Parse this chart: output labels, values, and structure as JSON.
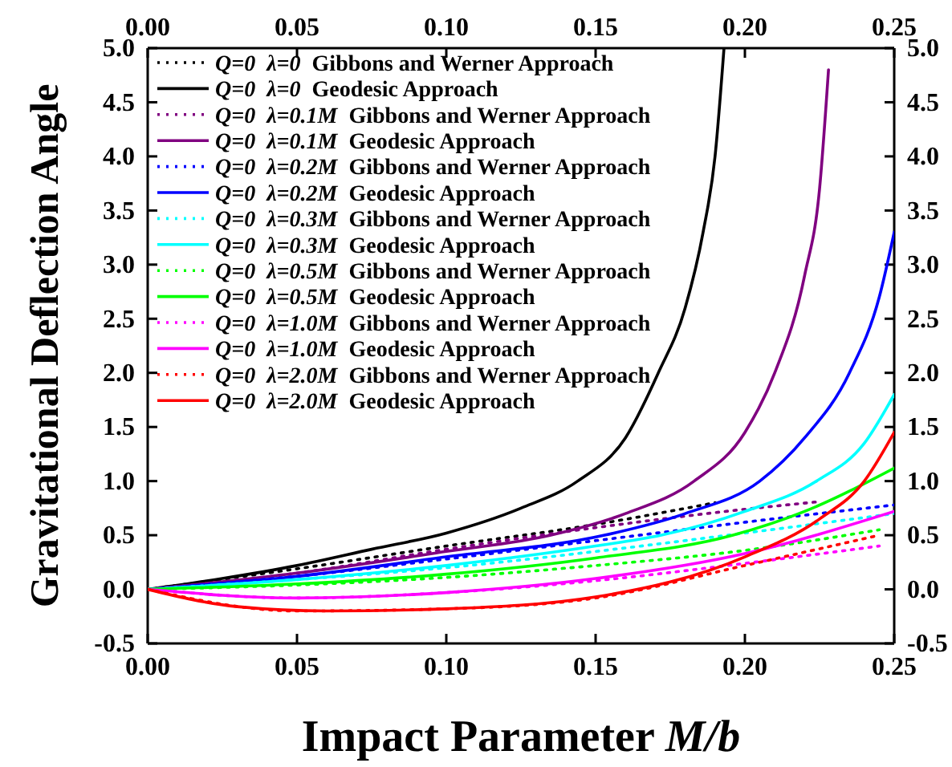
{
  "chart_data": {
    "type": "line",
    "xlabel": "Impact Parameter M/b",
    "ylabel": "Gravitational Deflection Angle",
    "xlim": [
      0,
      0.25
    ],
    "xticks": [
      {
        "value": 0,
        "label": "0.00"
      },
      {
        "value": 0.05,
        "label": "0.05"
      },
      {
        "value": 0.1,
        "label": "0.10"
      },
      {
        "value": 0.15,
        "label": "0.15"
      },
      {
        "value": 0.2,
        "label": "0.20"
      },
      {
        "value": 0.25,
        "label": "0.25"
      }
    ],
    "x2lim": [
      0,
      0.25
    ],
    "x2ticks": [
      {
        "value": 0,
        "label": "0.00"
      },
      {
        "value": 0.05,
        "label": "0.05"
      },
      {
        "value": 0.1,
        "label": "0.10"
      },
      {
        "value": 0.15,
        "label": "0.15"
      },
      {
        "value": 0.2,
        "label": "0.20"
      },
      {
        "value": 0.25,
        "label": "0.25"
      }
    ],
    "ylim": [
      -0.5,
      5
    ],
    "yticks": [
      {
        "value": -0.5,
        "label": "-0.5"
      },
      {
        "value": 0,
        "label": "0.0"
      },
      {
        "value": 0.5,
        "label": "0.5"
      },
      {
        "value": 1,
        "label": "1.0"
      },
      {
        "value": 1.5,
        "label": "1.5"
      },
      {
        "value": 2,
        "label": "2.0"
      },
      {
        "value": 2.5,
        "label": "2.5"
      },
      {
        "value": 3,
        "label": "3.0"
      },
      {
        "value": 3.5,
        "label": "3.5"
      },
      {
        "value": 4,
        "label": "4.0"
      },
      {
        "value": 4.5,
        "label": "4.5"
      },
      {
        "value": 5,
        "label": "5.0"
      }
    ],
    "y2lim": [
      -0.5,
      5
    ],
    "y2ticks": [
      {
        "value": -0.5,
        "label": "-0.5"
      },
      {
        "value": 0,
        "label": "0.0"
      },
      {
        "value": 0.5,
        "label": "0.5"
      },
      {
        "value": 1,
        "label": "1.0"
      },
      {
        "value": 1.5,
        "label": "1.5"
      },
      {
        "value": 2,
        "label": "2.0"
      },
      {
        "value": 2.5,
        "label": "2.5"
      },
      {
        "value": 3,
        "label": "3.0"
      },
      {
        "value": 3.5,
        "label": "3.5"
      },
      {
        "value": 4,
        "label": "4.0"
      },
      {
        "value": 4.5,
        "label": "4.5"
      },
      {
        "value": 5,
        "label": "5.0"
      }
    ],
    "grid": false,
    "legend": "top left",
    "marker": "none",
    "series": [
      {
        "name": "Q=0  λ=0  Gibbons and Werner Approach",
        "color": "#000000",
        "line_style": "dotted",
        "x": [
          0,
          0.05,
          0.1,
          0.15,
          0.19
        ],
        "values": [
          0,
          0.19,
          0.4,
          0.6,
          0.8
        ]
      },
      {
        "name": "Q=0  λ=0  Geodesic Approach",
        "color": "#000000",
        "line_style": "solid",
        "x": [
          0,
          0.025,
          0.05,
          0.075,
          0.1,
          0.125,
          0.144,
          0.16,
          0.171,
          0.18,
          0.186,
          0.19,
          0.193
        ],
        "values": [
          0,
          0.1,
          0.22,
          0.37,
          0.52,
          0.75,
          1.0,
          1.4,
          2.0,
          2.6,
          3.3,
          4.0,
          5.0
        ]
      },
      {
        "name": "Q=0  λ=0.1M  Gibbons and Werner Approach",
        "color": "#800080",
        "line_style": "dotted",
        "x": [
          0,
          0.05,
          0.1,
          0.15,
          0.2,
          0.225
        ],
        "values": [
          0,
          0.15,
          0.37,
          0.57,
          0.74,
          0.81
        ]
      },
      {
        "name": "Q=0  λ=0.1M  Geodesic Approach",
        "color": "#800080",
        "line_style": "solid",
        "x": [
          0,
          0.05,
          0.1,
          0.135,
          0.16,
          0.183,
          0.2,
          0.21,
          0.22,
          0.225,
          0.228
        ],
        "values": [
          0,
          0.15,
          0.35,
          0.5,
          0.7,
          1.0,
          1.45,
          2.0,
          2.9,
          3.7,
          4.8
        ]
      },
      {
        "name": "Q=0  λ=0.2M  Gibbons and Werner Approach",
        "color": "#0000ff",
        "line_style": "dotted",
        "x": [
          0,
          0.05,
          0.1,
          0.15,
          0.2,
          0.25
        ],
        "values": [
          0,
          0.12,
          0.28,
          0.45,
          0.62,
          0.78
        ]
      },
      {
        "name": "Q=0  λ=0.2M  Geodesic Approach",
        "color": "#0000ff",
        "line_style": "solid",
        "x": [
          0,
          0.05,
          0.1,
          0.153,
          0.18,
          0.205,
          0.22,
          0.235,
          0.245,
          0.25
        ],
        "values": [
          0,
          0.12,
          0.3,
          0.5,
          0.7,
          1.0,
          1.4,
          2.0,
          2.7,
          3.3
        ]
      },
      {
        "name": "Q=0  λ=0.3M  Gibbons and Werner Approach",
        "color": "#00ffff",
        "line_style": "dotted",
        "x": [
          0,
          0.05,
          0.1,
          0.15,
          0.2,
          0.25
        ],
        "values": [
          0,
          0.09,
          0.2,
          0.35,
          0.52,
          0.7
        ]
      },
      {
        "name": "Q=0  λ=0.3M  Geodesic Approach",
        "color": "#00ffff",
        "line_style": "solid",
        "x": [
          0,
          0.05,
          0.1,
          0.15,
          0.172,
          0.2,
          0.224,
          0.24,
          0.25
        ],
        "values": [
          0,
          0.09,
          0.22,
          0.4,
          0.5,
          0.72,
          1.0,
          1.35,
          1.8
        ]
      },
      {
        "name": "Q=0  λ=0.5M  Gibbons and Werner Approach",
        "color": "#00ff00",
        "line_style": "dotted",
        "x": [
          0,
          0.05,
          0.1,
          0.15,
          0.2,
          0.245
        ],
        "values": [
          0,
          0.04,
          0.11,
          0.22,
          0.36,
          0.55
        ]
      },
      {
        "name": "Q=0  λ=0.5M  Geodesic Approach",
        "color": "#00ff00",
        "line_style": "solid",
        "x": [
          0,
          0.05,
          0.1,
          0.15,
          0.196,
          0.22,
          0.25
        ],
        "values": [
          0,
          0.05,
          0.14,
          0.29,
          0.5,
          0.72,
          1.12
        ]
      },
      {
        "name": "Q=0  λ=1.0M  Gibbons and Werner Approach",
        "color": "#ff00ff",
        "line_style": "dotted",
        "x": [
          0,
          0.05,
          0.1,
          0.15,
          0.2,
          0.245
        ],
        "values": [
          0,
          -0.08,
          -0.03,
          0.08,
          0.24,
          0.4
        ]
      },
      {
        "name": "Q=0  λ=1.0M  Geodesic Approach",
        "color": "#ff00ff",
        "line_style": "solid",
        "x": [
          0,
          0.05,
          0.1,
          0.15,
          0.2,
          0.25
        ],
        "values": [
          0,
          -0.08,
          -0.03,
          0.1,
          0.33,
          0.72
        ]
      },
      {
        "name": "Q=0  λ=2.0M  Gibbons and Werner Approach",
        "color": "#ff0000",
        "line_style": "dotted",
        "x": [
          0,
          0.05,
          0.1,
          0.15,
          0.2,
          0.245
        ],
        "values": [
          0,
          -0.2,
          -0.18,
          -0.08,
          0.22,
          0.5
        ]
      },
      {
        "name": "Q=0  λ=2.0M  Geodesic Approach",
        "color": "#ff0000",
        "line_style": "solid",
        "x": [
          0,
          0.03,
          0.06,
          0.1,
          0.15,
          0.2,
          0.225,
          0.24,
          0.25
        ],
        "values": [
          0,
          -0.16,
          -0.2,
          -0.18,
          -0.07,
          0.3,
          0.65,
          1.0,
          1.45
        ]
      }
    ]
  }
}
